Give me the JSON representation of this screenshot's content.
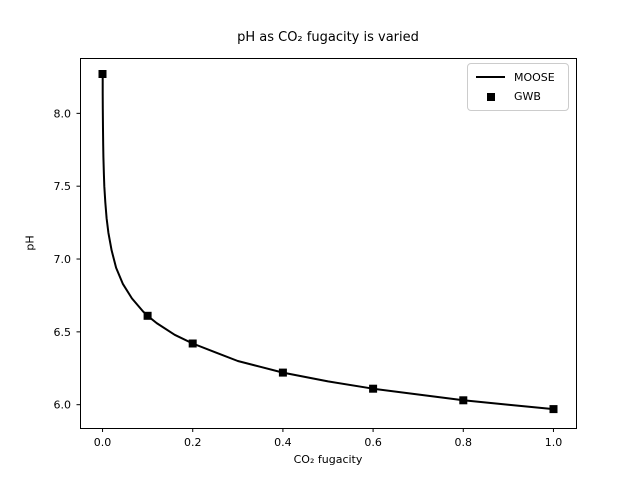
{
  "colors": {
    "foreground": "#000000",
    "background": "#ffffff",
    "legend_border": "#cccccc"
  },
  "chart_data": {
    "type": "line",
    "title": "pH as CO₂ fugacity is varied",
    "xlabel": "CO₂ fugacity",
    "ylabel": "pH",
    "xlim": [
      -0.05,
      1.05
    ],
    "ylim": [
      5.84,
      8.38
    ],
    "grid": false,
    "legend": {
      "position": "upper right",
      "entries": [
        "MOOSE",
        "GWB"
      ]
    },
    "xticks": {
      "values": [
        0.0,
        0.2,
        0.4,
        0.6,
        0.8,
        1.0
      ],
      "labels": [
        "0.0",
        "0.2",
        "0.4",
        "0.6",
        "0.8",
        "1.0"
      ]
    },
    "yticks": {
      "values": [
        6.0,
        6.5,
        7.0,
        7.5,
        8.0
      ],
      "labels": [
        "6.0",
        "6.5",
        "7.0",
        "7.5",
        "8.0"
      ]
    },
    "series": [
      {
        "name": "MOOSE",
        "type": "line",
        "color": "#000000",
        "linewidth": 2,
        "x": [
          0.0003,
          0.0004,
          0.0006,
          0.001,
          0.0015,
          0.002,
          0.003,
          0.004,
          0.006,
          0.009,
          0.013,
          0.02,
          0.03,
          0.045,
          0.065,
          0.09,
          0.1,
          0.12,
          0.16,
          0.2,
          0.25,
          0.3,
          0.35,
          0.4,
          0.5,
          0.6,
          0.7,
          0.8,
          0.9,
          1.0
        ],
        "y": [
          8.27,
          8.14,
          8.03,
          7.89,
          7.78,
          7.7,
          7.58,
          7.5,
          7.39,
          7.28,
          7.18,
          7.06,
          6.94,
          6.83,
          6.73,
          6.64,
          6.61,
          6.56,
          6.48,
          6.42,
          6.36,
          6.3,
          6.26,
          6.22,
          6.16,
          6.11,
          6.07,
          6.03,
          6.0,
          5.97
        ]
      },
      {
        "name": "GWB",
        "type": "scatter",
        "marker": "square",
        "color": "#000000",
        "markersize": 8,
        "x": [
          0.0,
          0.1,
          0.2,
          0.4,
          0.6,
          0.8,
          1.0
        ],
        "y": [
          8.27,
          6.61,
          6.42,
          6.22,
          6.11,
          6.03,
          5.97
        ]
      }
    ]
  }
}
